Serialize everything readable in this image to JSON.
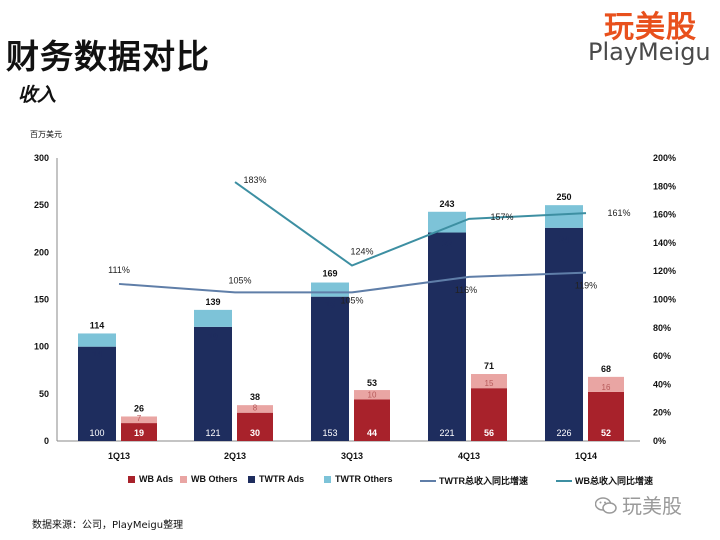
{
  "header": {
    "title": "财务数据对比",
    "subtitle": "收入",
    "logo_cn": "玩美股",
    "logo_en": "PlayMeigu"
  },
  "footer": {
    "source": "数据来源：公司，PlayMeigu整理",
    "watermark": "玩美股"
  },
  "colors": {
    "wb_ads": "#a8222b",
    "wb_others": "#e9a5a3",
    "twtr_ads": "#1e2d5e",
    "twtr_others": "#7dc3d8",
    "twtr_growth": "#5f7ea8",
    "wb_growth": "#3d8fa2"
  },
  "chart_data": {
    "type": "bar",
    "categories": [
      "1Q13",
      "2Q13",
      "3Q13",
      "4Q13",
      "1Q14"
    ],
    "y_unit_label": "百万美元",
    "ylim": [
      0,
      300
    ],
    "yticks": [
      0,
      50,
      100,
      150,
      200,
      250,
      300
    ],
    "y2lim": [
      0,
      2.0
    ],
    "y2ticks": [
      "0%",
      "20%",
      "40%",
      "60%",
      "80%",
      "100%",
      "120%",
      "140%",
      "160%",
      "180%",
      "200%"
    ],
    "twtr": {
      "ads": [
        100,
        121,
        153,
        221,
        226
      ],
      "others": [
        14,
        18,
        15,
        22,
        24
      ],
      "totals": [
        114,
        139,
        169,
        243,
        250
      ]
    },
    "wb": {
      "ads": [
        19,
        30,
        44,
        56,
        52
      ],
      "others": [
        7,
        8,
        10,
        15,
        16
      ],
      "totals": [
        26,
        38,
        53,
        71,
        68
      ]
    },
    "lines": [
      {
        "name": "TWTR总收入同比增速",
        "values": [
          1.11,
          1.05,
          1.05,
          1.16,
          1.19
        ],
        "labels": [
          "111%",
          "105%",
          "105%",
          "116%",
          "119%"
        ]
      },
      {
        "name": "WB总收入同比增速",
        "values": [
          null,
          1.83,
          1.24,
          1.57,
          1.61
        ],
        "labels": [
          "",
          "183%",
          "124%",
          "157%",
          "161%"
        ]
      }
    ],
    "legend": [
      "WB Ads",
      "WB Others",
      "TWTR Ads",
      "TWTR Others",
      "TWTR总收入同比增速",
      "WB总收入同比增速"
    ],
    "legend_position": "bottom"
  }
}
